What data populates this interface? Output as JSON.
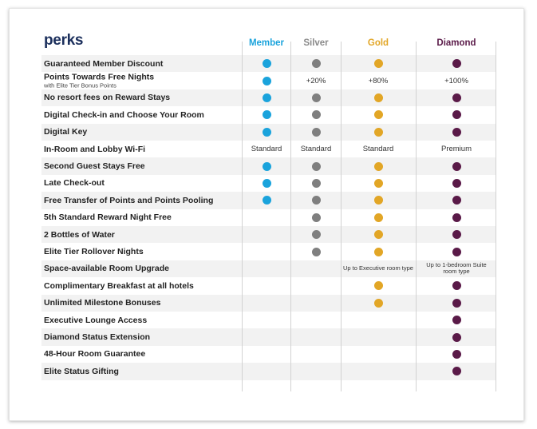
{
  "title": "perks",
  "tiers": [
    {
      "name": "Member",
      "color": "#1aa3dc"
    },
    {
      "name": "Silver",
      "color": "#7f7f7f"
    },
    {
      "name": "Gold",
      "color": "#e2a626"
    },
    {
      "name": "Diamond",
      "color": "#5a1a48"
    }
  ],
  "heading_colors": [
    "#1aa3dc",
    "#8a8a8a",
    "#e2a626",
    "#5a1a48"
  ],
  "rows": [
    {
      "label": "Guaranteed Member Discount",
      "cells": [
        "dot",
        "dot",
        "dot",
        "dot"
      ]
    },
    {
      "label": "Points Towards Free Nights",
      "sublabel": "with Elite Tier Bonus Points",
      "cells": [
        "dot",
        "+20%",
        "+80%",
        "+100%"
      ]
    },
    {
      "label": "No resort fees on Reward Stays",
      "cells": [
        "dot",
        "dot",
        "dot",
        "dot"
      ]
    },
    {
      "label": "Digital Check-in and Choose Your Room",
      "cells": [
        "dot",
        "dot",
        "dot",
        "dot"
      ]
    },
    {
      "label": "Digital Key",
      "cells": [
        "dot",
        "dot",
        "dot",
        "dot"
      ]
    },
    {
      "label": "In-Room and Lobby Wi-Fi",
      "cells": [
        "Standard",
        "Standard",
        "Standard",
        "Premium"
      ]
    },
    {
      "label": "Second Guest Stays Free",
      "cells": [
        "dot",
        "dot",
        "dot",
        "dot"
      ]
    },
    {
      "label": "Late Check-out",
      "cells": [
        "dot",
        "dot",
        "dot",
        "dot"
      ]
    },
    {
      "label": "Free Transfer of Points and Points Pooling",
      "cells": [
        "dot",
        "dot",
        "dot",
        "dot"
      ]
    },
    {
      "label": "5th Standard Reward Night Free",
      "cells": [
        "",
        "dot",
        "dot",
        "dot"
      ]
    },
    {
      "label": "2 Bottles of Water",
      "cells": [
        "",
        "dot",
        "dot",
        "dot"
      ]
    },
    {
      "label": "Elite Tier Rollover Nights",
      "cells": [
        "",
        "dot",
        "dot",
        "dot"
      ]
    },
    {
      "label": "Space-available Room Upgrade",
      "cells": [
        "",
        "",
        "Up to Executive room type",
        "Up to 1-bedroom Suite room type"
      ]
    },
    {
      "label": "Complimentary Breakfast at all hotels",
      "cells": [
        "",
        "",
        "dot",
        "dot"
      ]
    },
    {
      "label": "Unlimited Milestone Bonuses",
      "cells": [
        "",
        "",
        "dot",
        "dot"
      ]
    },
    {
      "label": "Executive Lounge Access",
      "cells": [
        "",
        "",
        "",
        "dot"
      ]
    },
    {
      "label": "Diamond Status Extension",
      "cells": [
        "",
        "",
        "",
        "dot"
      ]
    },
    {
      "label": "48-Hour Room Guarantee",
      "cells": [
        "",
        "",
        "",
        "dot"
      ]
    },
    {
      "label": "Elite Status Gifting",
      "cells": [
        "",
        "",
        "",
        "dot"
      ]
    }
  ]
}
